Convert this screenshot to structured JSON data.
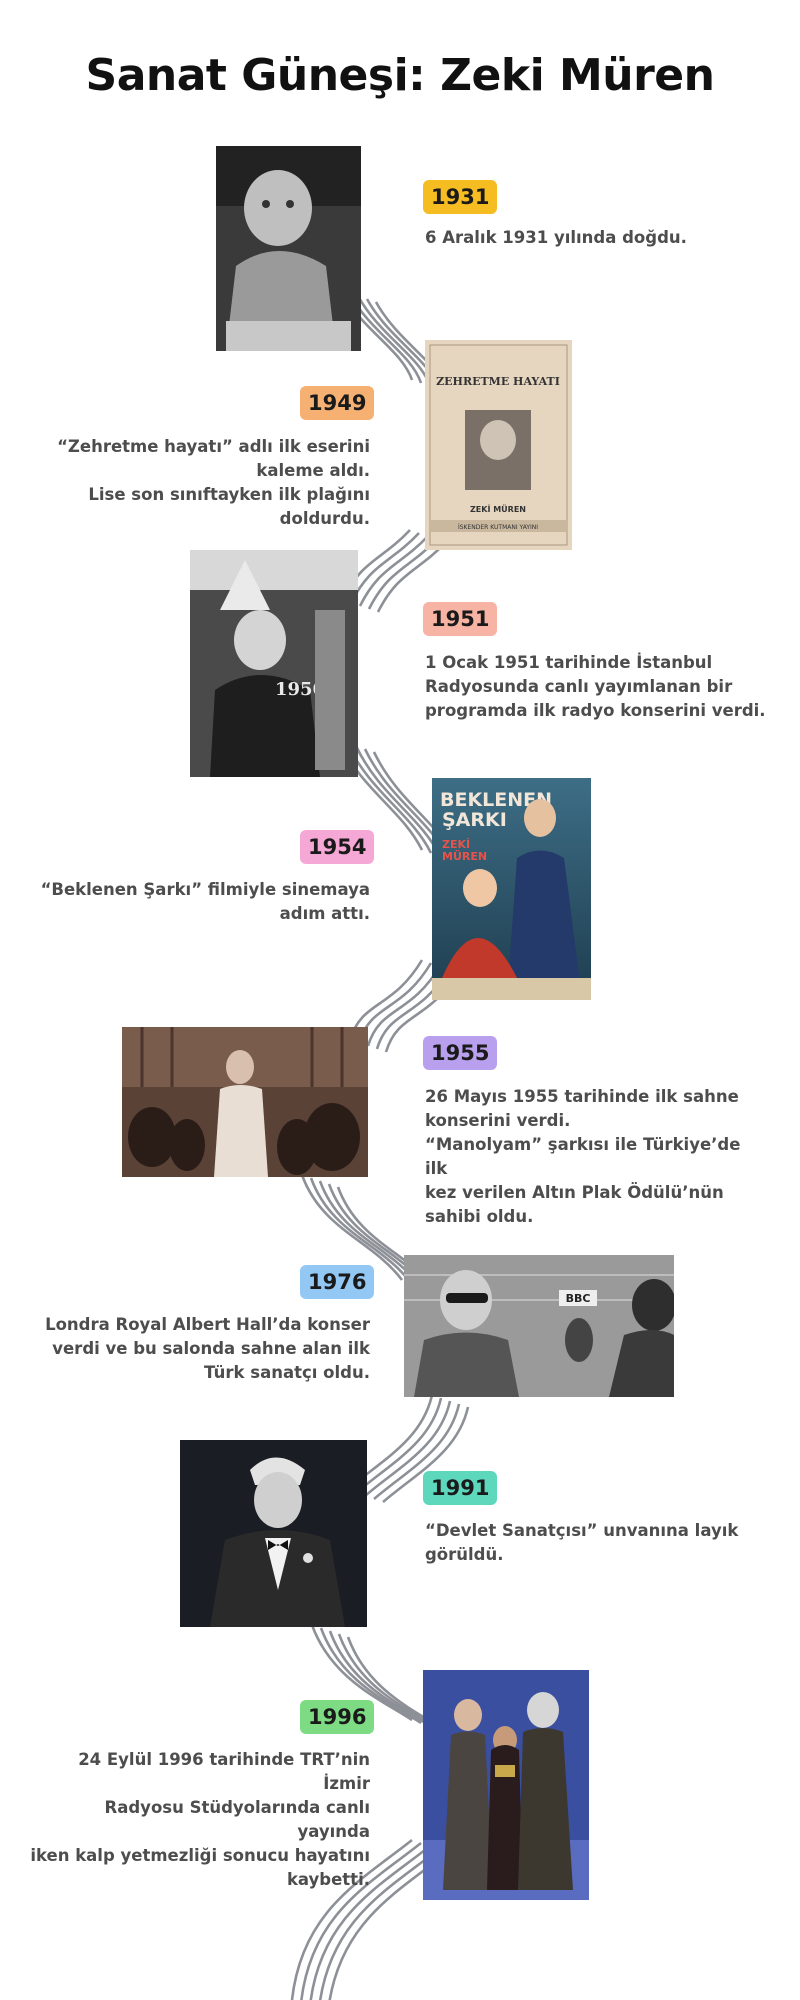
{
  "title": "Sanat Güneşi: Zeki Müren",
  "events": [
    {
      "year": "1931",
      "color": "#f6bd22",
      "lines": [
        "6 Aralık 1931 yılında doğdu."
      ],
      "photo": "baby-photo"
    },
    {
      "year": "1949",
      "color": "#f6b072",
      "lines": [
        "“Zehretme hayatı” adlı ilk eserini",
        "kaleme aldı.",
        "Lise son sınıftayken ilk plağını",
        "doldurdu."
      ],
      "photo": "sheet-music-photo",
      "photo_text": {
        "title": "ZEHRETME HAYATI",
        "name": "ZEKİ MÜREN",
        "publisher": "İSKENDER KUTMANI YAYINI"
      }
    },
    {
      "year": "1951",
      "color": "#f7b3a3",
      "lines": [
        "1 Ocak 1951 tarihinde İstanbul",
        "Radyosunda canlı yayımlanan bir",
        "programda ilk radyo konserini verdi."
      ],
      "photo": "radio-1950-photo",
      "photo_text": {
        "caption": "1950"
      }
    },
    {
      "year": "1954",
      "color": "#f5a8d6",
      "lines": [
        "“Beklenen Şarkı” filmiyle sinemaya",
        "adım attı."
      ],
      "photo": "movie-poster",
      "photo_text": {
        "title1": "BEKLENEN",
        "title2": "ŞARKI",
        "name1": "ZEKİ",
        "name2": "MÜREN"
      }
    },
    {
      "year": "1955",
      "color": "#b9a0ee",
      "lines": [
        "26 Mayıs 1955 tarihinde ilk sahne",
        "konserini verdi.",
        "“Manolyam” şarkısı ile Türkiye’de ilk",
        "kez verilen Altın Plak Ödülü’nün",
        "sahibi oldu."
      ],
      "photo": "stage-concert-photo"
    },
    {
      "year": "1976",
      "color": "#93c7f4",
      "lines": [
        "Londra Royal Albert Hall’da konser",
        "verdi ve bu salonda sahne alan ilk",
        "Türk sanatçı oldu."
      ],
      "photo": "bbc-studio-photo",
      "photo_text": {
        "logo": "BBC"
      }
    },
    {
      "year": "1991",
      "color": "#5ed8bd",
      "lines": [
        "“Devlet Sanatçısı” unvanına layık",
        "görüldü."
      ],
      "photo": "portrait-tuxedo-photo"
    },
    {
      "year": "1996",
      "color": "#7ddb83",
      "lines": [
        "24 Eylül 1996 tarihinde TRT’nin İzmir",
        "Radyosu Stüdyolarında canlı yayında",
        "iken  kalp yetmezliği sonucu hayatını",
        "kaybetti."
      ],
      "photo": "award-ceremony-photo"
    }
  ]
}
